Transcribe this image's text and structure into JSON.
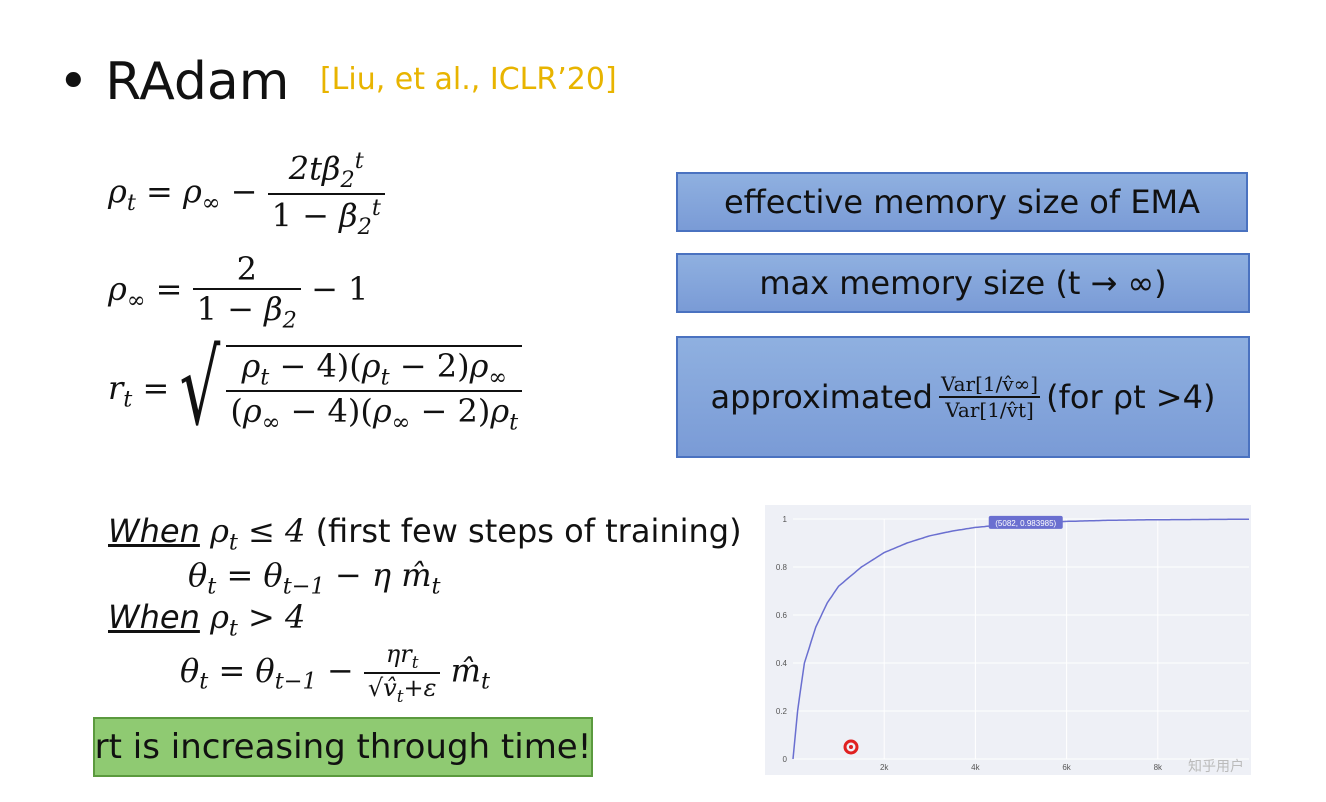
{
  "slide": {
    "bullet": "•",
    "title": "RAdam",
    "citation": "[Liu, et al., ICLR’20]"
  },
  "formulas": {
    "rho_t_lhs": "ρ",
    "rho_inf_lhs": "ρ",
    "r_t_lhs": "r"
  },
  "boxes": {
    "effective_memory": "effective memory size of EMA",
    "max_memory": "max memory size (t → ∞)",
    "approx_prefix": "approximated",
    "approx_num": "Var[1/v̂∞]",
    "approx_den": "Var[1/v̂t]",
    "approx_suffix": "(for ρt >4)"
  },
  "rules": {
    "when_word": "When",
    "cond1_rest": "(first few steps of training)",
    "cond2": "When ρt > 4"
  },
  "conclusion": "rt is increasing through time!",
  "chart_data": {
    "type": "line",
    "x": [
      0,
      100,
      250,
      500,
      750,
      1000,
      1500,
      2000,
      2500,
      3000,
      3500,
      4000,
      5082,
      6000,
      7000,
      8000,
      9000,
      10000
    ],
    "y": [
      0.0,
      0.2,
      0.4,
      0.55,
      0.65,
      0.72,
      0.8,
      0.86,
      0.9,
      0.93,
      0.95,
      0.965,
      0.983985,
      0.99,
      0.995,
      0.997,
      0.998,
      0.999
    ],
    "xlim": [
      0,
      10000
    ],
    "ylim": [
      0,
      1
    ],
    "x_ticks": [
      "2k",
      "4k",
      "6k",
      "8k"
    ],
    "y_ticks": [
      "0",
      "0.2",
      "0.4",
      "0.6",
      "0.8",
      "1"
    ],
    "annotation": "(5082, 0.983985)",
    "grid": true,
    "line_color": "#6a6fd0"
  },
  "watermark": "知乎用户"
}
